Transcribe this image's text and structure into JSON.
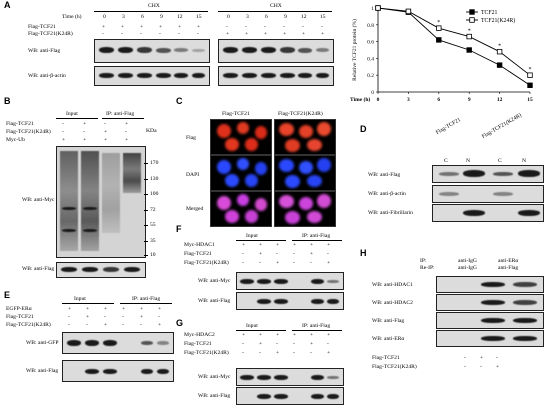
{
  "panels": {
    "A": {
      "label": "A",
      "chx": "CHX",
      "time_label": "Time (h)",
      "times": [
        "0",
        "3",
        "6",
        "9",
        "12",
        "15"
      ],
      "rows": [
        "Flag-TCF21",
        "Flag-TCF21(K24R)"
      ],
      "wb": [
        "WB: anti-Flag",
        "WB: anti-β-actin"
      ],
      "plus": "+",
      "minus": "-"
    },
    "B": {
      "label": "B",
      "input": "Input",
      "ip": "IP: anti-Flag",
      "rows": [
        "Flag-TCF21",
        "Flag-TCF21(K24R)",
        "Myc-Ub"
      ],
      "kda": "KDa",
      "markers": [
        "170",
        "130",
        "100",
        "72",
        "55",
        "35",
        "10"
      ],
      "wb": [
        "WB: anti-Myc",
        "WB: anti-Flag"
      ]
    },
    "C": {
      "label": "C",
      "cols": [
        "Flag-TCF21",
        "Flag-TCF21(K24R)"
      ],
      "rows": [
        "Flag",
        "DAPI",
        "Merged"
      ]
    },
    "D": {
      "label": "D",
      "cols": [
        "Flag-TCF21",
        "Flag-TCF21(K24R)"
      ],
      "fractions": [
        "C",
        "N",
        "C",
        "N"
      ],
      "wb": [
        "WB: anti-Flag",
        "WB: anti-β-actin",
        "WB: anti-Fibrillarin"
      ]
    },
    "E": {
      "label": "E",
      "input": "Input",
      "ip": "IP: anti-Flag",
      "rows": [
        "EGFP-ERα",
        "Flag-TCF21",
        "Flag-TCF21(K24R)"
      ],
      "wb": [
        "WB: anti-GFP",
        "WB: anti-Flag"
      ]
    },
    "F": {
      "label": "F",
      "input": "Input",
      "ip": "IP: anti-Flag",
      "rows": [
        "Myc-HDAC1",
        "Flag-TCF21",
        "Flag-TCF21(K24R)"
      ],
      "wb": [
        "WB: anti-Myc",
        "WB: anti-Flag"
      ]
    },
    "G": {
      "label": "G",
      "input": "Input",
      "ip": "IP: anti-Flag",
      "rows": [
        "Myc-HDAC2",
        "Flag-TCF21",
        "Flag-TCF21(K24R)"
      ],
      "wb": [
        "WB: anti-Myc",
        "WB: anti-Flag"
      ]
    },
    "H": {
      "label": "H",
      "ip_label": "IP:",
      "reip_label": "Re-IP:",
      "ip_vals": [
        "anti-IgG",
        "anti-ERα"
      ],
      "reip_vals": [
        "anti-IgG",
        "anti-Flag"
      ],
      "wb": [
        "WB: anti-HDAC1",
        "WB: anti-HDAC2",
        "WB: anti-Flag",
        "WB: anti-ERα"
      ],
      "rows": [
        "Flag-TCF21",
        "Flag-TCF21(K24R)"
      ]
    }
  },
  "chart_data": {
    "type": "line",
    "xlabel": "Time (h)",
    "ylabel": "Relative TCF21 protein (%)",
    "x": [
      0,
      3,
      6,
      9,
      12,
      15
    ],
    "xlim": [
      0,
      15
    ],
    "ylim": [
      0,
      1
    ],
    "yticks": [
      "0",
      "0.2",
      "0.4",
      "0.6",
      "0.8",
      "1"
    ],
    "xticks": [
      "0",
      "3",
      "6",
      "9",
      "12",
      "15"
    ],
    "series": [
      {
        "name": "TCF21",
        "values": [
          1.0,
          0.95,
          0.62,
          0.5,
          0.32,
          0.08
        ],
        "marker": "filled-square"
      },
      {
        "name": "TCF21(K24R)",
        "values": [
          1.0,
          0.96,
          0.76,
          0.66,
          0.48,
          0.2
        ],
        "marker": "open-square"
      }
    ],
    "annotations": [
      "*",
      "*",
      "*",
      "*"
    ],
    "legend": "top-right"
  }
}
